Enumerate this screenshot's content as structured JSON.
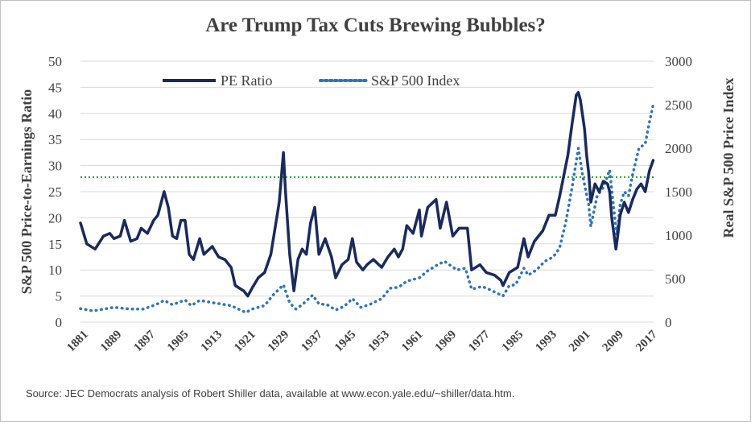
{
  "chart_data": {
    "type": "line",
    "title": "Are Trump Tax Cuts Brewing Bubbles?",
    "ylabel_left": "S&P 500 Price-to-Earnings Ratio",
    "ylabel_right": "Real S&P 500 Price Index",
    "ylim_left": [
      0,
      50
    ],
    "ylim_right": [
      0,
      3000
    ],
    "yticks_left": [
      "0",
      "5",
      "10",
      "15",
      "20",
      "25",
      "30",
      "35",
      "40",
      "45",
      "50"
    ],
    "yticks_right": [
      "0",
      "500",
      "1000",
      "1500",
      "2000",
      "2500",
      "3000"
    ],
    "xlim": [
      1881,
      2018
    ],
    "xticks": [
      "1881",
      "1889",
      "1897",
      "1905",
      "1913",
      "1921",
      "1929",
      "1937",
      "1945",
      "1953",
      "1961",
      "1969",
      "1977",
      "1985",
      "1993",
      "2001",
      "2009",
      "2017"
    ],
    "legend": [
      "PE Ratio",
      "S&P 500 Index"
    ],
    "legend_position": "top-left",
    "reference_line": {
      "axis": "left",
      "y": 27.8,
      "style": "dotted",
      "color": "#2ca02c"
    },
    "series": [
      {
        "name": "PE Ratio",
        "axis": "left",
        "style": "solid",
        "color": "#1a2a5e",
        "points": [
          [
            1881.0,
            19.0
          ],
          [
            1882.5,
            15.0
          ],
          [
            1884.5,
            14.0
          ],
          [
            1886.5,
            16.5
          ],
          [
            1888.0,
            17.0
          ],
          [
            1889.0,
            16.0
          ],
          [
            1890.5,
            16.5
          ],
          [
            1891.5,
            19.5
          ],
          [
            1893.0,
            15.5
          ],
          [
            1894.5,
            16.0
          ],
          [
            1895.5,
            18.0
          ],
          [
            1897.0,
            17.0
          ],
          [
            1898.5,
            19.5
          ],
          [
            1899.5,
            20.5
          ],
          [
            1900.5,
            23.5
          ],
          [
            1901.0,
            25.0
          ],
          [
            1902.0,
            22.0
          ],
          [
            1903.0,
            16.5
          ],
          [
            1904.0,
            16.0
          ],
          [
            1905.0,
            19.5
          ],
          [
            1906.0,
            19.5
          ],
          [
            1907.0,
            13.0
          ],
          [
            1908.0,
            12.0
          ],
          [
            1909.5,
            16.0
          ],
          [
            1910.5,
            13.0
          ],
          [
            1912.5,
            14.5
          ],
          [
            1914.0,
            12.5
          ],
          [
            1915.5,
            12.0
          ],
          [
            1917.0,
            10.5
          ],
          [
            1918.0,
            7.0
          ],
          [
            1920.0,
            6.0
          ],
          [
            1921.0,
            5.0
          ],
          [
            1922.0,
            6.5
          ],
          [
            1923.5,
            8.5
          ],
          [
            1925.0,
            9.5
          ],
          [
            1926.5,
            13.0
          ],
          [
            1927.5,
            18.0
          ],
          [
            1928.5,
            23.0
          ],
          [
            1929.5,
            32.5
          ],
          [
            1930.0,
            25.0
          ],
          [
            1931.0,
            13.0
          ],
          [
            1932.0,
            6.0
          ],
          [
            1933.0,
            12.0
          ],
          [
            1934.0,
            14.0
          ],
          [
            1935.0,
            13.0
          ],
          [
            1936.0,
            19.0
          ],
          [
            1937.0,
            22.0
          ],
          [
            1938.0,
            13.0
          ],
          [
            1939.5,
            16.0
          ],
          [
            1941.0,
            12.5
          ],
          [
            1942.0,
            8.5
          ],
          [
            1943.5,
            11.0
          ],
          [
            1945.0,
            12.0
          ],
          [
            1946.0,
            16.0
          ],
          [
            1947.0,
            11.5
          ],
          [
            1948.5,
            10.0
          ],
          [
            1949.5,
            11.0
          ],
          [
            1951.0,
            12.0
          ],
          [
            1953.0,
            10.5
          ],
          [
            1954.5,
            12.5
          ],
          [
            1956.0,
            14.0
          ],
          [
            1957.0,
            12.5
          ],
          [
            1958.0,
            14.0
          ],
          [
            1959.0,
            18.5
          ],
          [
            1960.5,
            17.0
          ],
          [
            1962.0,
            21.5
          ],
          [
            1962.5,
            16.5
          ],
          [
            1964.0,
            22.0
          ],
          [
            1966.0,
            23.5
          ],
          [
            1967.0,
            18.0
          ],
          [
            1968.5,
            23.0
          ],
          [
            1970.0,
            16.5
          ],
          [
            1971.5,
            18.0
          ],
          [
            1973.5,
            18.0
          ],
          [
            1974.5,
            10.0
          ],
          [
            1976.5,
            11.0
          ],
          [
            1978.0,
            9.5
          ],
          [
            1980.0,
            9.0
          ],
          [
            1981.5,
            8.0
          ],
          [
            1982.0,
            7.0
          ],
          [
            1983.5,
            9.5
          ],
          [
            1985.5,
            10.5
          ],
          [
            1987.0,
            16.0
          ],
          [
            1988.0,
            12.5
          ],
          [
            1989.5,
            15.5
          ],
          [
            1991.5,
            17.5
          ],
          [
            1993.0,
            20.5
          ],
          [
            1994.5,
            20.5
          ],
          [
            1995.5,
            24.0
          ],
          [
            1996.5,
            28.0
          ],
          [
            1997.5,
            32.0
          ],
          [
            1998.5,
            38.0
          ],
          [
            1999.5,
            43.5
          ],
          [
            2000.0,
            44.0
          ],
          [
            2000.5,
            42.5
          ],
          [
            2001.5,
            37.0
          ],
          [
            2002.0,
            32.0
          ],
          [
            2002.5,
            28.5
          ],
          [
            2003.0,
            23.0
          ],
          [
            2004.0,
            26.5
          ],
          [
            2005.0,
            25.0
          ],
          [
            2006.0,
            27.0
          ],
          [
            2007.0,
            26.5
          ],
          [
            2007.5,
            25.0
          ],
          [
            2008.0,
            20.0
          ],
          [
            2009.0,
            14.0
          ],
          [
            2009.5,
            17.0
          ],
          [
            2010.0,
            20.5
          ],
          [
            2011.0,
            23.0
          ],
          [
            2012.0,
            21.0
          ],
          [
            2013.0,
            23.5
          ],
          [
            2014.0,
            25.5
          ],
          [
            2015.0,
            26.5
          ],
          [
            2016.0,
            25.0
          ],
          [
            2017.0,
            29.0
          ],
          [
            2017.9,
            31.0
          ]
        ]
      },
      {
        "name": "S&P 500 Index",
        "axis": "right",
        "style": "dotted",
        "color": "#2e75b6",
        "points": [
          [
            1881.0,
            155
          ],
          [
            1884.0,
            130
          ],
          [
            1886.0,
            145
          ],
          [
            1889.0,
            170
          ],
          [
            1891.0,
            160
          ],
          [
            1893.0,
            150
          ],
          [
            1896.0,
            150
          ],
          [
            1899.0,
            200
          ],
          [
            1901.0,
            250
          ],
          [
            1903.0,
            200
          ],
          [
            1906.0,
            255
          ],
          [
            1907.5,
            190
          ],
          [
            1909.5,
            250
          ],
          [
            1913.0,
            220
          ],
          [
            1917.0,
            190
          ],
          [
            1920.5,
            110
          ],
          [
            1922.0,
            150
          ],
          [
            1925.0,
            190
          ],
          [
            1927.0,
            310
          ],
          [
            1929.5,
            430
          ],
          [
            1931.0,
            220
          ],
          [
            1932.5,
            150
          ],
          [
            1934.0,
            200
          ],
          [
            1936.5,
            310
          ],
          [
            1938.0,
            210
          ],
          [
            1940.0,
            200
          ],
          [
            1942.0,
            140
          ],
          [
            1944.0,
            180
          ],
          [
            1946.0,
            270
          ],
          [
            1948.0,
            170
          ],
          [
            1950.0,
            200
          ],
          [
            1953.0,
            270
          ],
          [
            1955.0,
            390
          ],
          [
            1957.0,
            400
          ],
          [
            1959.0,
            470
          ],
          [
            1962.0,
            510
          ],
          [
            1964.0,
            590
          ],
          [
            1966.0,
            650
          ],
          [
            1968.0,
            700
          ],
          [
            1969.5,
            650
          ],
          [
            1971.0,
            600
          ],
          [
            1973.0,
            620
          ],
          [
            1974.5,
            380
          ],
          [
            1977.0,
            410
          ],
          [
            1979.0,
            370
          ],
          [
            1982.0,
            300
          ],
          [
            1983.5,
            420
          ],
          [
            1985.0,
            430
          ],
          [
            1987.0,
            620
          ],
          [
            1988.0,
            540
          ],
          [
            1990.0,
            600
          ],
          [
            1992.0,
            700
          ],
          [
            1994.0,
            750
          ],
          [
            1995.5,
            850
          ],
          [
            1997.0,
            1150
          ],
          [
            1998.5,
            1550
          ],
          [
            2000.0,
            2000
          ],
          [
            2001.0,
            1700
          ],
          [
            2002.5,
            1350
          ],
          [
            2003.0,
            1100
          ],
          [
            2004.5,
            1450
          ],
          [
            2006.0,
            1550
          ],
          [
            2007.5,
            1750
          ],
          [
            2008.5,
            1300
          ],
          [
            2009.2,
            1000
          ],
          [
            2010.0,
            1350
          ],
          [
            2011.0,
            1500
          ],
          [
            2012.0,
            1450
          ],
          [
            2013.0,
            1700
          ],
          [
            2014.5,
            2000
          ],
          [
            2016.0,
            2050
          ],
          [
            2017.0,
            2300
          ],
          [
            2017.9,
            2500
          ]
        ]
      }
    ],
    "source": "Source: JEC Democrats analysis of Robert Shiller data, available at www.econ.yale.edu/~shiller/data.htm."
  }
}
